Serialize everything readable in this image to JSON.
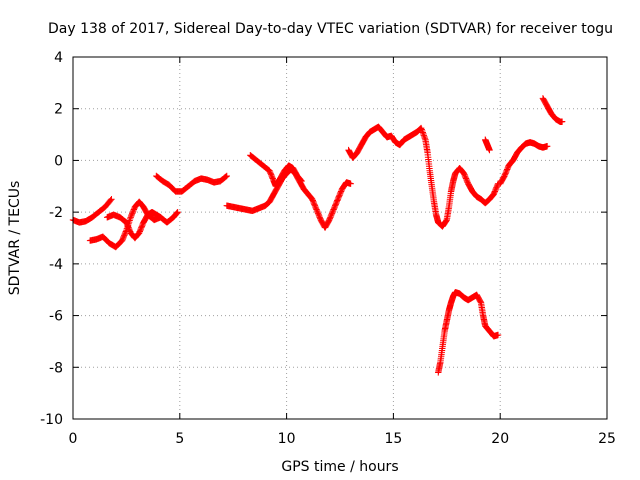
{
  "chart_data": {
    "type": "scatter",
    "title": "Day 138 of 2017, Sidereal Day-to-day VTEC variation (SDTVAR) for receiver togu",
    "xlabel": "GPS time / hours",
    "ylabel": "SDTVAR / TECUs",
    "xlim": [
      0,
      25
    ],
    "ylim": [
      -10,
      4
    ],
    "xticks": [
      "0",
      "5",
      "10",
      "15",
      "20",
      "25"
    ],
    "yticks": [
      "-10",
      "-8",
      "-6",
      "-4",
      "-2",
      "0",
      "2",
      "4"
    ],
    "grid": true,
    "marker": "plus",
    "color": "#ff0000",
    "series": [
      {
        "segments": [
          [
            [
              0.0,
              -2.3
            ],
            [
              0.3,
              -2.4
            ],
            [
              0.6,
              -2.35
            ],
            [
              0.9,
              -2.2
            ],
            [
              1.2,
              -2.0
            ],
            [
              1.5,
              -1.8
            ],
            [
              1.8,
              -1.5
            ]
          ],
          [
            [
              0.8,
              -3.1
            ],
            [
              1.1,
              -3.05
            ],
            [
              1.4,
              -2.95
            ],
            [
              1.7,
              -3.2
            ],
            [
              2.0,
              -3.35
            ],
            [
              2.3,
              -3.1
            ],
            [
              2.5,
              -2.7
            ],
            [
              2.7,
              -2.2
            ],
            [
              2.9,
              -1.8
            ],
            [
              3.1,
              -1.6
            ],
            [
              3.3,
              -1.8
            ],
            [
              3.5,
              -2.1
            ],
            [
              3.8,
              -2.3
            ],
            [
              4.1,
              -2.2
            ],
            [
              4.4,
              -2.4
            ],
            [
              4.7,
              -2.2
            ],
            [
              4.9,
              -2.0
            ]
          ],
          [
            [
              1.6,
              -2.2
            ],
            [
              1.9,
              -2.1
            ],
            [
              2.2,
              -2.2
            ],
            [
              2.5,
              -2.4
            ],
            [
              2.7,
              -2.8
            ],
            [
              2.9,
              -3.0
            ],
            [
              3.1,
              -2.8
            ],
            [
              3.3,
              -2.4
            ],
            [
              3.5,
              -2.1
            ],
            [
              3.7,
              -2.0
            ],
            [
              3.9,
              -2.1
            ],
            [
              4.1,
              -2.2
            ]
          ],
          [
            [
              3.9,
              -0.6
            ],
            [
              4.2,
              -0.8
            ],
            [
              4.5,
              -0.95
            ],
            [
              4.8,
              -1.2
            ],
            [
              5.1,
              -1.2
            ],
            [
              5.4,
              -1.0
            ],
            [
              5.7,
              -0.8
            ],
            [
              6.0,
              -0.7
            ],
            [
              6.3,
              -0.75
            ],
            [
              6.6,
              -0.85
            ],
            [
              6.9,
              -0.8
            ],
            [
              7.2,
              -0.6
            ]
          ],
          [
            [
              7.2,
              -1.75
            ],
            [
              7.5,
              -1.8
            ],
            [
              7.8,
              -1.85
            ],
            [
              8.1,
              -1.9
            ],
            [
              8.4,
              -1.95
            ],
            [
              8.7,
              -1.85
            ],
            [
              9.0,
              -1.75
            ],
            [
              9.2,
              -1.6
            ],
            [
              9.4,
              -1.3
            ],
            [
              9.6,
              -1.0
            ],
            [
              9.8,
              -0.7
            ],
            [
              10.0,
              -0.5
            ],
            [
              10.2,
              -0.35
            ],
            [
              10.4,
              -0.5
            ],
            [
              10.6,
              -0.8
            ],
            [
              10.8,
              -1.1
            ],
            [
              11.0,
              -1.3
            ],
            [
              11.2,
              -1.5
            ],
            [
              11.4,
              -1.9
            ],
            [
              11.6,
              -2.3
            ],
            [
              11.8,
              -2.6
            ],
            [
              12.0,
              -2.3
            ],
            [
              12.2,
              -1.9
            ],
            [
              12.4,
              -1.5
            ],
            [
              12.6,
              -1.1
            ],
            [
              12.8,
              -0.85
            ],
            [
              13.0,
              -0.9
            ]
          ],
          [
            [
              8.3,
              0.2
            ],
            [
              8.6,
              0.0
            ],
            [
              8.9,
              -0.2
            ],
            [
              9.2,
              -0.4
            ],
            [
              9.4,
              -0.8
            ],
            [
              9.5,
              -1.0
            ],
            [
              9.7,
              -0.7
            ],
            [
              9.9,
              -0.4
            ],
            [
              10.1,
              -0.2
            ],
            [
              10.3,
              -0.3
            ],
            [
              10.5,
              -0.6
            ],
            [
              10.7,
              -0.8
            ]
          ],
          [
            [
              12.9,
              0.4
            ],
            [
              13.1,
              0.1
            ],
            [
              13.3,
              0.3
            ],
            [
              13.5,
              0.6
            ],
            [
              13.7,
              0.9
            ],
            [
              13.9,
              1.1
            ],
            [
              14.1,
              1.2
            ],
            [
              14.3,
              1.3
            ],
            [
              14.5,
              1.1
            ],
            [
              14.7,
              0.9
            ],
            [
              14.9,
              0.95
            ],
            [
              15.1,
              0.7
            ],
            [
              15.3,
              0.6
            ],
            [
              15.5,
              0.8
            ],
            [
              15.7,
              0.9
            ],
            [
              15.9,
              1.0
            ],
            [
              16.1,
              1.1
            ],
            [
              16.3,
              1.25
            ],
            [
              16.5,
              0.8
            ],
            [
              16.6,
              0.3
            ],
            [
              16.7,
              -0.4
            ],
            [
              16.8,
              -1.0
            ],
            [
              16.9,
              -1.6
            ],
            [
              17.0,
              -2.1
            ],
            [
              17.1,
              -2.4
            ],
            [
              17.3,
              -2.55
            ],
            [
              17.5,
              -2.3
            ],
            [
              17.6,
              -1.8
            ],
            [
              17.7,
              -1.2
            ],
            [
              17.8,
              -0.8
            ],
            [
              17.9,
              -0.5
            ],
            [
              18.1,
              -0.3
            ],
            [
              18.3,
              -0.5
            ],
            [
              18.5,
              -0.9
            ],
            [
              18.7,
              -1.2
            ],
            [
              18.9,
              -1.4
            ],
            [
              19.1,
              -1.5
            ],
            [
              19.3,
              -1.65
            ],
            [
              19.5,
              -1.5
            ],
            [
              19.7,
              -1.3
            ],
            [
              19.9,
              -0.9
            ]
          ],
          [
            [
              19.3,
              0.8
            ],
            [
              19.4,
              0.6
            ],
            [
              19.5,
              0.4
            ]
          ],
          [
            [
              20.0,
              -0.9
            ],
            [
              20.2,
              -0.6
            ],
            [
              20.4,
              -0.2
            ],
            [
              20.6,
              0.0
            ],
            [
              20.8,
              0.3
            ],
            [
              21.0,
              0.5
            ],
            [
              21.2,
              0.65
            ],
            [
              21.4,
              0.7
            ],
            [
              21.6,
              0.65
            ],
            [
              21.8,
              0.55
            ],
            [
              22.0,
              0.5
            ],
            [
              22.2,
              0.55
            ]
          ],
          [
            [
              22.0,
              2.4
            ],
            [
              22.2,
              2.1
            ],
            [
              22.4,
              1.8
            ],
            [
              22.6,
              1.6
            ],
            [
              22.8,
              1.5
            ],
            [
              22.9,
              1.5
            ]
          ],
          [
            [
              17.1,
              -8.2
            ],
            [
              17.2,
              -7.8
            ],
            [
              17.3,
              -7.2
            ],
            [
              17.4,
              -6.6
            ],
            [
              17.5,
              -6.2
            ],
            [
              17.6,
              -5.8
            ],
            [
              17.7,
              -5.5
            ],
            [
              17.8,
              -5.25
            ],
            [
              17.9,
              -5.1
            ],
            [
              18.1,
              -5.15
            ],
            [
              18.3,
              -5.3
            ],
            [
              18.5,
              -5.4
            ],
            [
              18.7,
              -5.3
            ],
            [
              18.9,
              -5.2
            ],
            [
              19.1,
              -5.5
            ],
            [
              19.2,
              -6.0
            ],
            [
              19.3,
              -6.4
            ],
            [
              19.5,
              -6.6
            ],
            [
              19.7,
              -6.8
            ],
            [
              19.9,
              -6.75
            ]
          ]
        ]
      }
    ]
  }
}
